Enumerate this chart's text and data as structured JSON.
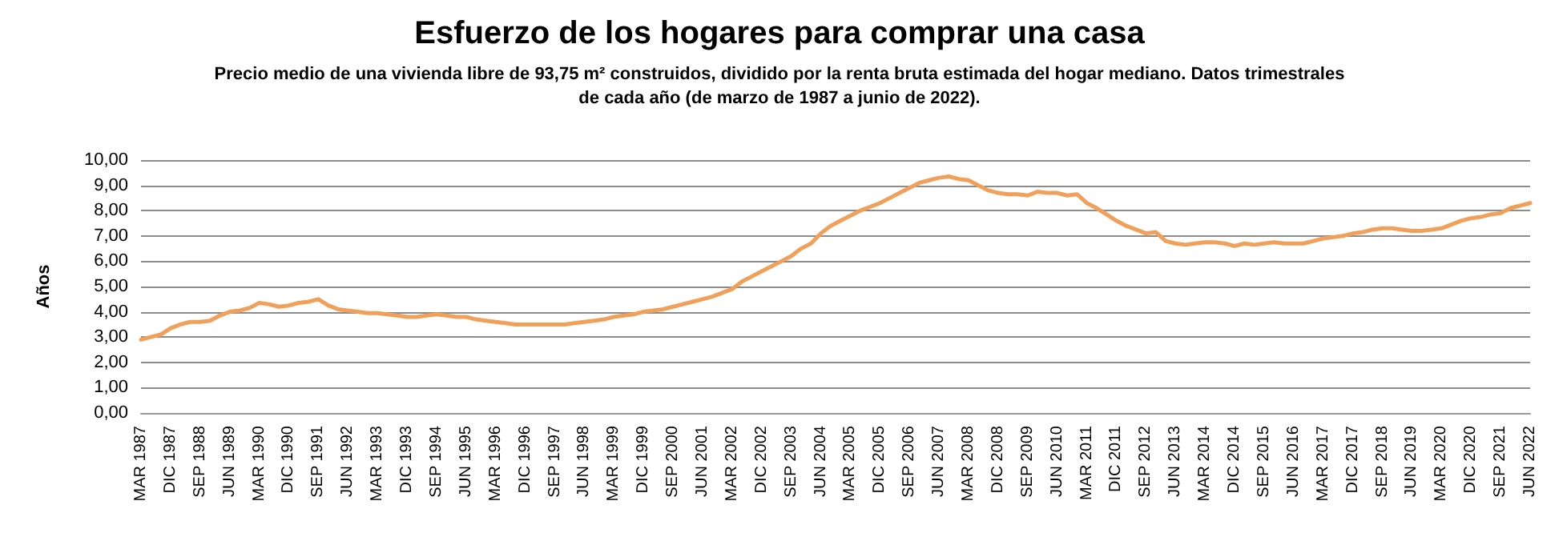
{
  "chart_data": {
    "type": "line",
    "title": "Esfuerzo de los hogares para comprar una casa",
    "subtitle": "Precio medio de una vivienda libre de 93,75 m² construidos, dividido por la renta bruta estimada del hogar mediano. Datos trimestrales\nde cada año (de marzo de 1987 a junio de 2022).",
    "ylabel": "Años",
    "categories": [
      "MAR 1987",
      null,
      null,
      "DIC 1987",
      null,
      null,
      "SEP 1988",
      null,
      null,
      "JUN 1989",
      null,
      null,
      "MAR 1990",
      null,
      null,
      "DIC 1990",
      null,
      null,
      "SEP 1991",
      null,
      null,
      "JUN 1992",
      null,
      null,
      "MAR 1993",
      null,
      null,
      "DIC 1993",
      null,
      null,
      "SEP 1994",
      null,
      null,
      "JUN 1995",
      null,
      null,
      "MAR 1996",
      null,
      null,
      "DIC 1996",
      null,
      null,
      "SEP 1997",
      null,
      null,
      "JUN 1998",
      null,
      null,
      "MAR 1999",
      null,
      null,
      "DIC 1999",
      null,
      null,
      "SEP 2000",
      null,
      null,
      "JUN 2001",
      null,
      null,
      "MAR 2002",
      null,
      null,
      "DIC 2002",
      null,
      null,
      "SEP 2003",
      null,
      null,
      "JUN 2004",
      null,
      null,
      "MAR 2005",
      null,
      null,
      "DIC 2005",
      null,
      null,
      "SEP 2006",
      null,
      null,
      "JUN 2007",
      null,
      null,
      "MAR 2008",
      null,
      null,
      "DIC 2008",
      null,
      null,
      "SEP 2009",
      null,
      null,
      "JUN 2010",
      null,
      null,
      "MAR 2011",
      null,
      null,
      "DIC 2011",
      null,
      null,
      "SEP 2012",
      null,
      null,
      "JUN 2013",
      null,
      null,
      "MAR 2014",
      null,
      null,
      "DIC 2014",
      null,
      null,
      "SEP 2015",
      null,
      null,
      "JUN 2016",
      null,
      null,
      "MAR 2017",
      null,
      null,
      "DIC 2017",
      null,
      null,
      "SEP 2018",
      null,
      null,
      "JUN 2019",
      null,
      null,
      "MAR 2020",
      null,
      null,
      "DIC 2020",
      null,
      null,
      "SEP 2021",
      null,
      null,
      "JUN 2022"
    ],
    "series": [
      {
        "color": "#f0a058",
        "values": [
          2.9,
          3.0,
          3.1,
          3.35,
          3.5,
          3.6,
          3.6,
          3.65,
          3.85,
          4.0,
          4.05,
          4.15,
          4.35,
          4.3,
          4.2,
          4.25,
          4.35,
          4.4,
          4.5,
          4.25,
          4.1,
          4.05,
          4.0,
          3.95,
          3.95,
          3.9,
          3.85,
          3.8,
          3.8,
          3.85,
          3.9,
          3.85,
          3.8,
          3.8,
          3.7,
          3.65,
          3.6,
          3.55,
          3.5,
          3.5,
          3.5,
          3.5,
          3.5,
          3.5,
          3.55,
          3.6,
          3.65,
          3.7,
          3.8,
          3.85,
          3.9,
          4.0,
          4.05,
          4.1,
          4.2,
          4.3,
          4.4,
          4.5,
          4.6,
          4.75,
          4.9,
          5.2,
          5.4,
          5.6,
          5.8,
          6.0,
          6.2,
          6.5,
          6.7,
          7.1,
          7.4,
          7.6,
          7.8,
          8.0,
          8.15,
          8.3,
          8.5,
          8.7,
          8.9,
          9.1,
          9.2,
          9.3,
          9.35,
          9.25,
          9.2,
          9.0,
          8.8,
          8.7,
          8.65,
          8.65,
          8.6,
          8.75,
          8.7,
          8.7,
          8.6,
          8.65,
          8.3,
          8.1,
          7.85,
          7.6,
          7.4,
          7.25,
          7.1,
          7.15,
          6.8,
          6.7,
          6.65,
          6.7,
          6.75,
          6.75,
          6.7,
          6.6,
          6.7,
          6.65,
          6.7,
          6.75,
          6.7,
          6.7,
          6.7,
          6.8,
          6.9,
          6.95,
          7.0,
          7.1,
          7.15,
          7.25,
          7.3,
          7.3,
          7.25,
          7.2,
          7.2,
          7.25,
          7.3,
          7.45,
          7.6,
          7.7,
          7.75,
          7.85,
          7.9,
          8.1,
          8.2,
          8.3
        ]
      }
    ],
    "ylim": [
      0,
      10
    ],
    "yticks": [
      {
        "value": 0,
        "label": "0,00"
      },
      {
        "value": 1,
        "label": "1,00"
      },
      {
        "value": 2,
        "label": "2,00"
      },
      {
        "value": 3,
        "label": "3,00"
      },
      {
        "value": 4,
        "label": "4,00"
      },
      {
        "value": 5,
        "label": "5,00"
      },
      {
        "value": 6,
        "label": "6,00"
      },
      {
        "value": 7,
        "label": "7,00"
      },
      {
        "value": 8,
        "label": "8,00"
      },
      {
        "value": 9,
        "label": "9,00"
      },
      {
        "value": 10,
        "label": "10,00"
      }
    ],
    "grid": "y",
    "marker": "none",
    "line_style": "solid"
  }
}
